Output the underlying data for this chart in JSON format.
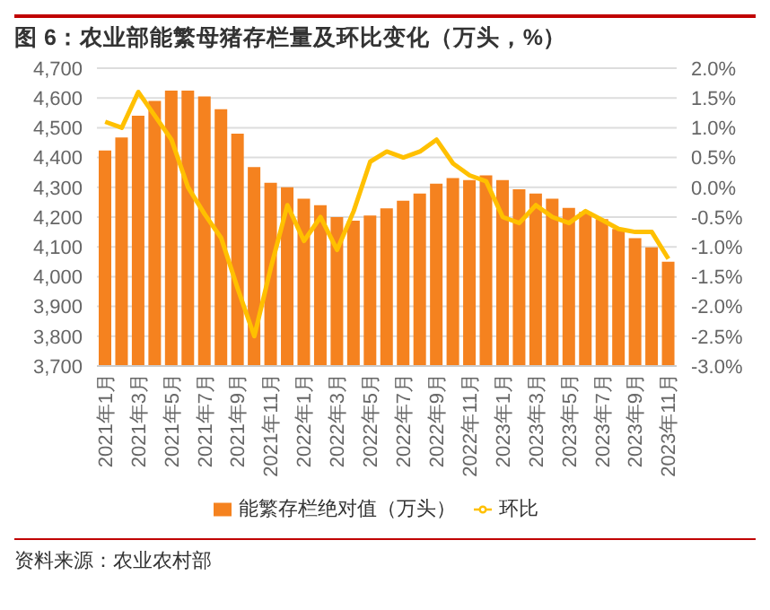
{
  "chart_data": {
    "type": "bar",
    "title": "图 6：农业部能繁母猪存栏量及环比变化（万头，%）",
    "categories": [
      "2021年1月",
      null,
      "2021年3月",
      null,
      "2021年5月",
      null,
      "2021年7月",
      null,
      "2021年9月",
      null,
      "2021年11月",
      null,
      "2022年1月",
      null,
      "2022年3月",
      null,
      "2022年5月",
      null,
      "2022年7月",
      null,
      "2022年9月",
      null,
      "2022年11月",
      null,
      "2023年1月",
      null,
      "2023年3月",
      null,
      "2023年5月",
      null,
      "2023年7月",
      null,
      "2023年9月",
      null,
      "2023年11月"
    ],
    "series": [
      {
        "name": "能繁存栏绝对值（万头）",
        "color": "#f5821f",
        "values": [
          4424,
          4467,
          4540,
          4590,
          4625,
          4625,
          4605,
          4562,
          4480,
          4368,
          4315,
          4300,
          4262,
          4240,
          4200,
          4188,
          4205,
          4229,
          4255,
          4279,
          4312,
          4331,
          4324,
          4340,
          4324,
          4293,
          4279,
          4262,
          4231,
          4217,
          4193,
          4160,
          4129,
          4098,
          4050
        ]
      },
      {
        "name": "环比",
        "type": "line",
        "axis": "y2",
        "color": "#ffc000",
        "values": [
          1.1,
          1.0,
          1.6,
          1.2,
          0.8,
          0.0,
          -0.45,
          -0.85,
          -1.7,
          -2.5,
          -1.35,
          -0.3,
          -0.9,
          -0.5,
          -1.05,
          -0.4,
          0.43,
          0.6,
          0.5,
          0.6,
          0.8,
          0.4,
          0.2,
          0.1,
          -0.5,
          -0.6,
          -0.3,
          -0.5,
          -0.6,
          -0.4,
          -0.55,
          -0.7,
          -0.75,
          -0.75,
          -1.2
        ]
      }
    ],
    "ylim": [
      3700,
      4700
    ],
    "yticks": [
      {
        "value": 3700,
        "label": "3,700"
      },
      {
        "value": 3800,
        "label": "3,800"
      },
      {
        "value": 3900,
        "label": "3,900"
      },
      {
        "value": 4000,
        "label": "4,000"
      },
      {
        "value": 4100,
        "label": "4,100"
      },
      {
        "value": 4200,
        "label": "4,200"
      },
      {
        "value": 4300,
        "label": "4,300"
      },
      {
        "value": 4400,
        "label": "4,400"
      },
      {
        "value": 4500,
        "label": "4,500"
      },
      {
        "value": 4600,
        "label": "4,600"
      },
      {
        "value": 4700,
        "label": "4,700"
      }
    ],
    "y2lim": [
      -3,
      2
    ],
    "y2ticks": [
      {
        "value": -3,
        "label": "-3.0%"
      },
      {
        "value": -2.5,
        "label": "-2.5%"
      },
      {
        "value": -2,
        "label": "-2.0%"
      },
      {
        "value": -1.5,
        "label": "-1.5%"
      },
      {
        "value": -1,
        "label": "-1.0%"
      },
      {
        "value": -0.5,
        "label": "-0.5%"
      },
      {
        "value": 0,
        "label": "0.0%"
      },
      {
        "value": 0.5,
        "label": "0.5%"
      },
      {
        "value": 1,
        "label": "1.0%"
      },
      {
        "value": 1.5,
        "label": "1.5%"
      },
      {
        "value": 2,
        "label": "2.0%"
      }
    ],
    "grid": "y",
    "legend": "bottom",
    "marker": "none",
    "annotations": [
      "资料来源：农业农村部"
    ]
  }
}
